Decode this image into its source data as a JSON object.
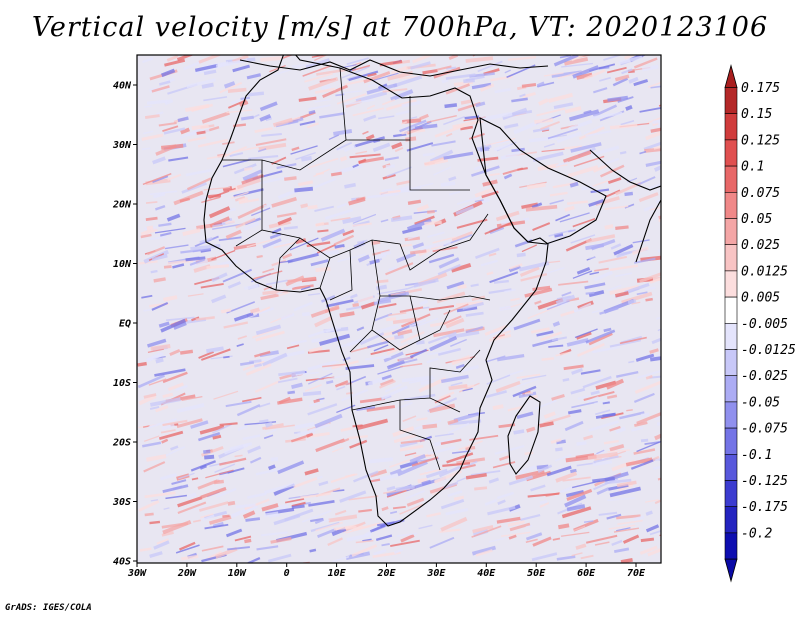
{
  "title": "Vertical velocity [m/s] at 700hPa, VT: 2020123106",
  "variable": "Vertical velocity",
  "units": "m/s",
  "level": "700hPa",
  "valid_time": "2020123106",
  "map": {
    "region": "Africa",
    "lon_range": [
      -30,
      75
    ],
    "lat_range": [
      -40,
      45
    ],
    "lat_labels": [
      "40N",
      "30N",
      "20N",
      "10N",
      "EQ",
      "10S",
      "20S",
      "30S",
      "40S"
    ],
    "lon_labels": [
      "30W",
      "20W",
      "10W",
      "0",
      "10E",
      "20E",
      "30E",
      "40E",
      "50E",
      "60E",
      "70E"
    ]
  },
  "colorbar": {
    "levels": [
      "0.175",
      "0.15",
      "0.125",
      "0.1",
      "0.075",
      "0.05",
      "0.025",
      "0.0125",
      "0.005",
      "-0.005",
      "-0.0125",
      "-0.025",
      "-0.05",
      "-0.075",
      "-0.1",
      "-0.125",
      "-0.175",
      "-0.2"
    ],
    "colors": [
      "#b42828",
      "#d03c3c",
      "#e05050",
      "#e86868",
      "#f08888",
      "#f4a6a6",
      "#f8c4c4",
      "#fcdede",
      "#ffffff",
      "#e4e4fc",
      "#c8c8f8",
      "#acacf4",
      "#9090ee",
      "#7474e6",
      "#5858dc",
      "#3c3cd0",
      "#2424c0",
      "#0e0eb0"
    ],
    "top_arrow_color": "#a81e1e",
    "bottom_arrow_color": "#0a0aa6"
  },
  "credit": "GrADS: IGES/COLA"
}
